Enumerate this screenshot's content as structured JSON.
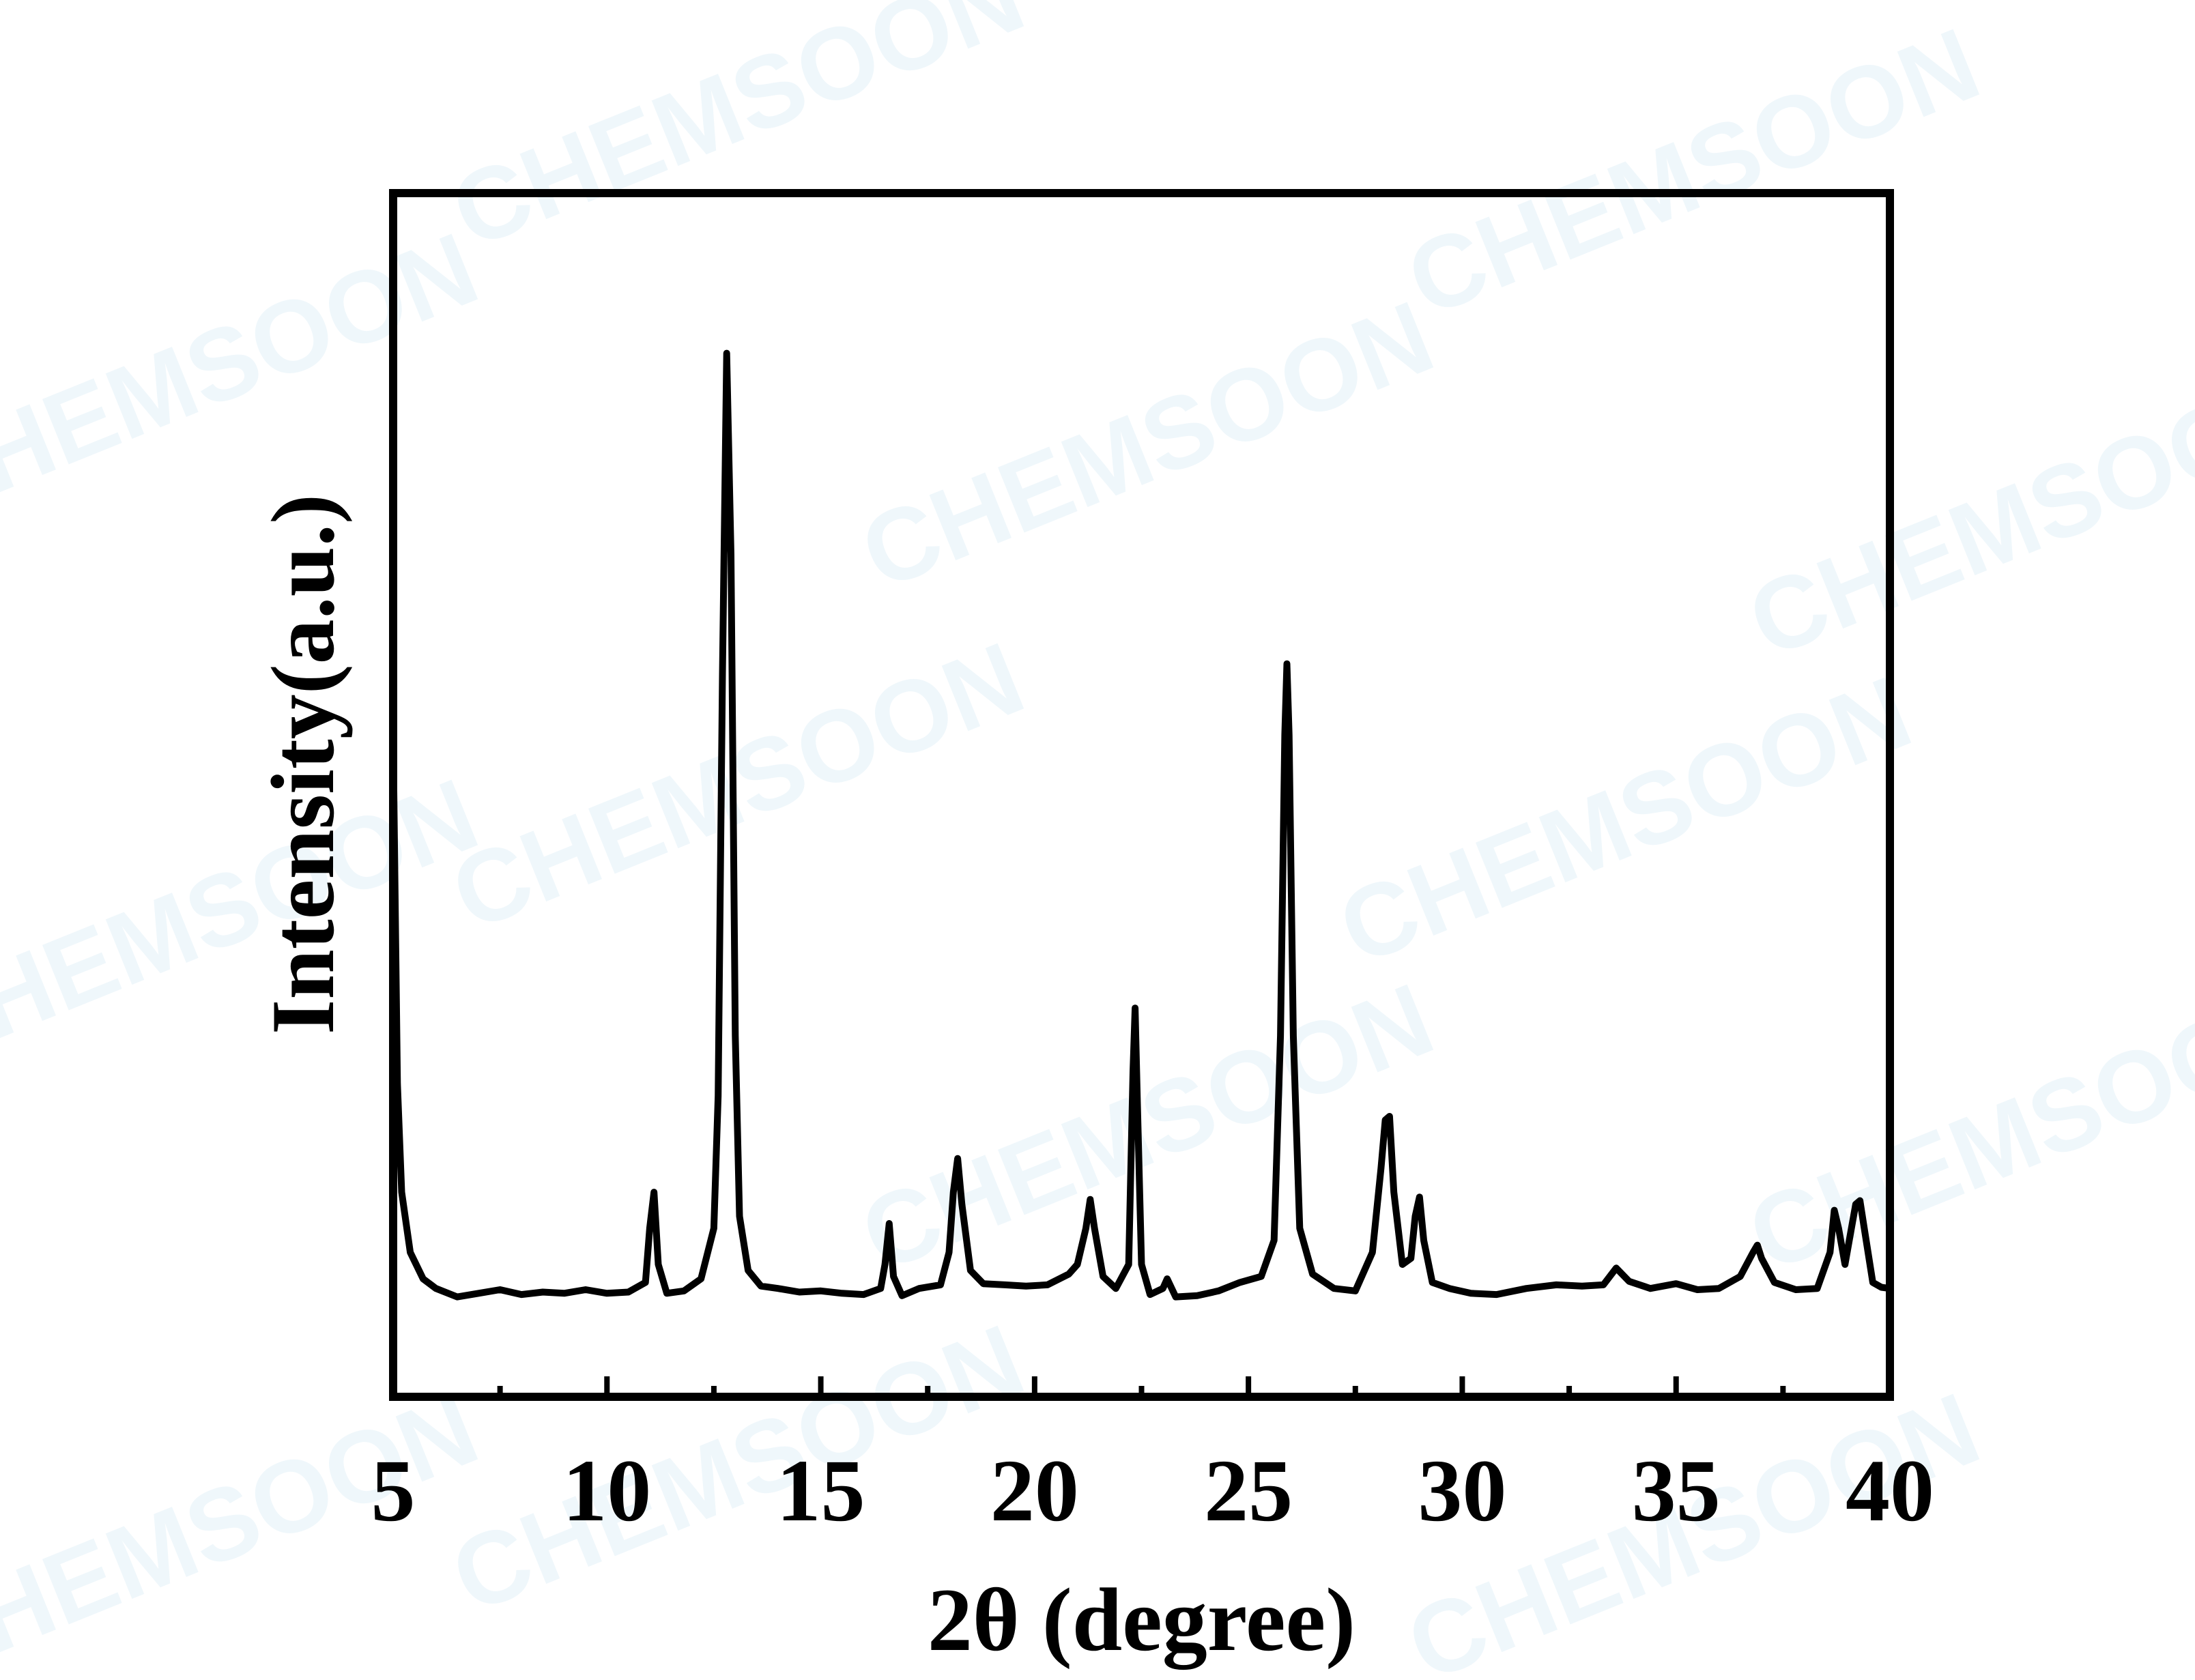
{
  "chart_data": {
    "type": "line",
    "xlabel": "2θ (degree)",
    "ylabel": "Intensity(a.u.)",
    "watermark": "CHEMSOON",
    "xlim": [
      5,
      40
    ],
    "xticks": [
      5,
      10,
      15,
      20,
      25,
      30,
      35,
      40
    ],
    "xminorticks": [
      7.5,
      12.5,
      17.5,
      22.5,
      27.5,
      32.5,
      37.5
    ],
    "ylim": [
      0,
      100
    ],
    "series": [
      {
        "color": "#000000",
        "x": [
          5.0,
          5.1,
          5.2,
          5.4,
          5.7,
          6.0,
          6.5,
          7.0,
          7.5,
          8.0,
          8.5,
          9.0,
          9.5,
          10.0,
          10.5,
          10.9,
          11.0,
          11.1,
          11.2,
          11.4,
          11.8,
          12.2,
          12.5,
          12.6,
          12.7,
          12.8,
          12.9,
          13.0,
          13.1,
          13.3,
          13.6,
          14.0,
          14.5,
          15.0,
          15.5,
          16.0,
          16.4,
          16.5,
          16.6,
          16.7,
          16.9,
          17.3,
          17.8,
          18.0,
          18.1,
          18.2,
          18.3,
          18.5,
          18.8,
          19.3,
          19.8,
          20.3,
          20.8,
          21.0,
          21.2,
          21.3,
          21.4,
          21.6,
          21.9,
          22.2,
          22.3,
          22.35,
          22.4,
          22.5,
          22.7,
          23.0,
          23.1,
          23.3,
          23.8,
          24.3,
          24.8,
          25.3,
          25.6,
          25.75,
          25.85,
          25.9,
          25.95,
          26.05,
          26.2,
          26.5,
          27.0,
          27.5,
          27.9,
          28.1,
          28.2,
          28.3,
          28.4,
          28.6,
          28.8,
          28.9,
          29.0,
          29.1,
          29.3,
          29.7,
          30.2,
          30.8,
          31.5,
          32.2,
          32.8,
          33.3,
          33.6,
          33.9,
          34.4,
          35.0,
          35.5,
          36.0,
          36.5,
          36.8,
          36.9,
          37.0,
          37.3,
          37.8,
          38.3,
          38.6,
          38.7,
          38.8,
          38.95,
          39.1,
          39.2,
          39.3,
          39.4,
          39.6,
          39.8,
          40.0
        ],
        "values": [
          55,
          26,
          17,
          12,
          9.8,
          9,
          8.3,
          8.6,
          8.9,
          8.5,
          8.7,
          8.6,
          8.9,
          8.6,
          8.7,
          9.5,
          14,
          17,
          11,
          8.6,
          8.8,
          9.8,
          14,
          25,
          60,
          86.7,
          70,
          30,
          15,
          10.5,
          9.2,
          9,
          8.7,
          8.8,
          8.6,
          8.5,
          9,
          11,
          14.4,
          10,
          8.4,
          9,
          9.3,
          12,
          17,
          19.8,
          16,
          10.5,
          9.4,
          9.3,
          9.2,
          9.3,
          10.2,
          11,
          14,
          16.4,
          14,
          10,
          9,
          11,
          27,
          32.3,
          25,
          11,
          8.5,
          9,
          9.8,
          8.3,
          8.4,
          8.8,
          9.5,
          10,
          13,
          30,
          55,
          60.9,
          55,
          30,
          14,
          10.2,
          9,
          8.8,
          12,
          19,
          23,
          23.3,
          17,
          11,
          11.5,
          15,
          16.6,
          13,
          9.5,
          9,
          8.6,
          8.5,
          9,
          9.3,
          9.2,
          9.3,
          10.7,
          9.6,
          9,
          9.4,
          8.9,
          9,
          10,
          12,
          12.6,
          11.5,
          9.5,
          8.9,
          9,
          12,
          15.5,
          14,
          11,
          14,
          16,
          16.3,
          14,
          9.5,
          9.1,
          9
        ]
      }
    ]
  }
}
